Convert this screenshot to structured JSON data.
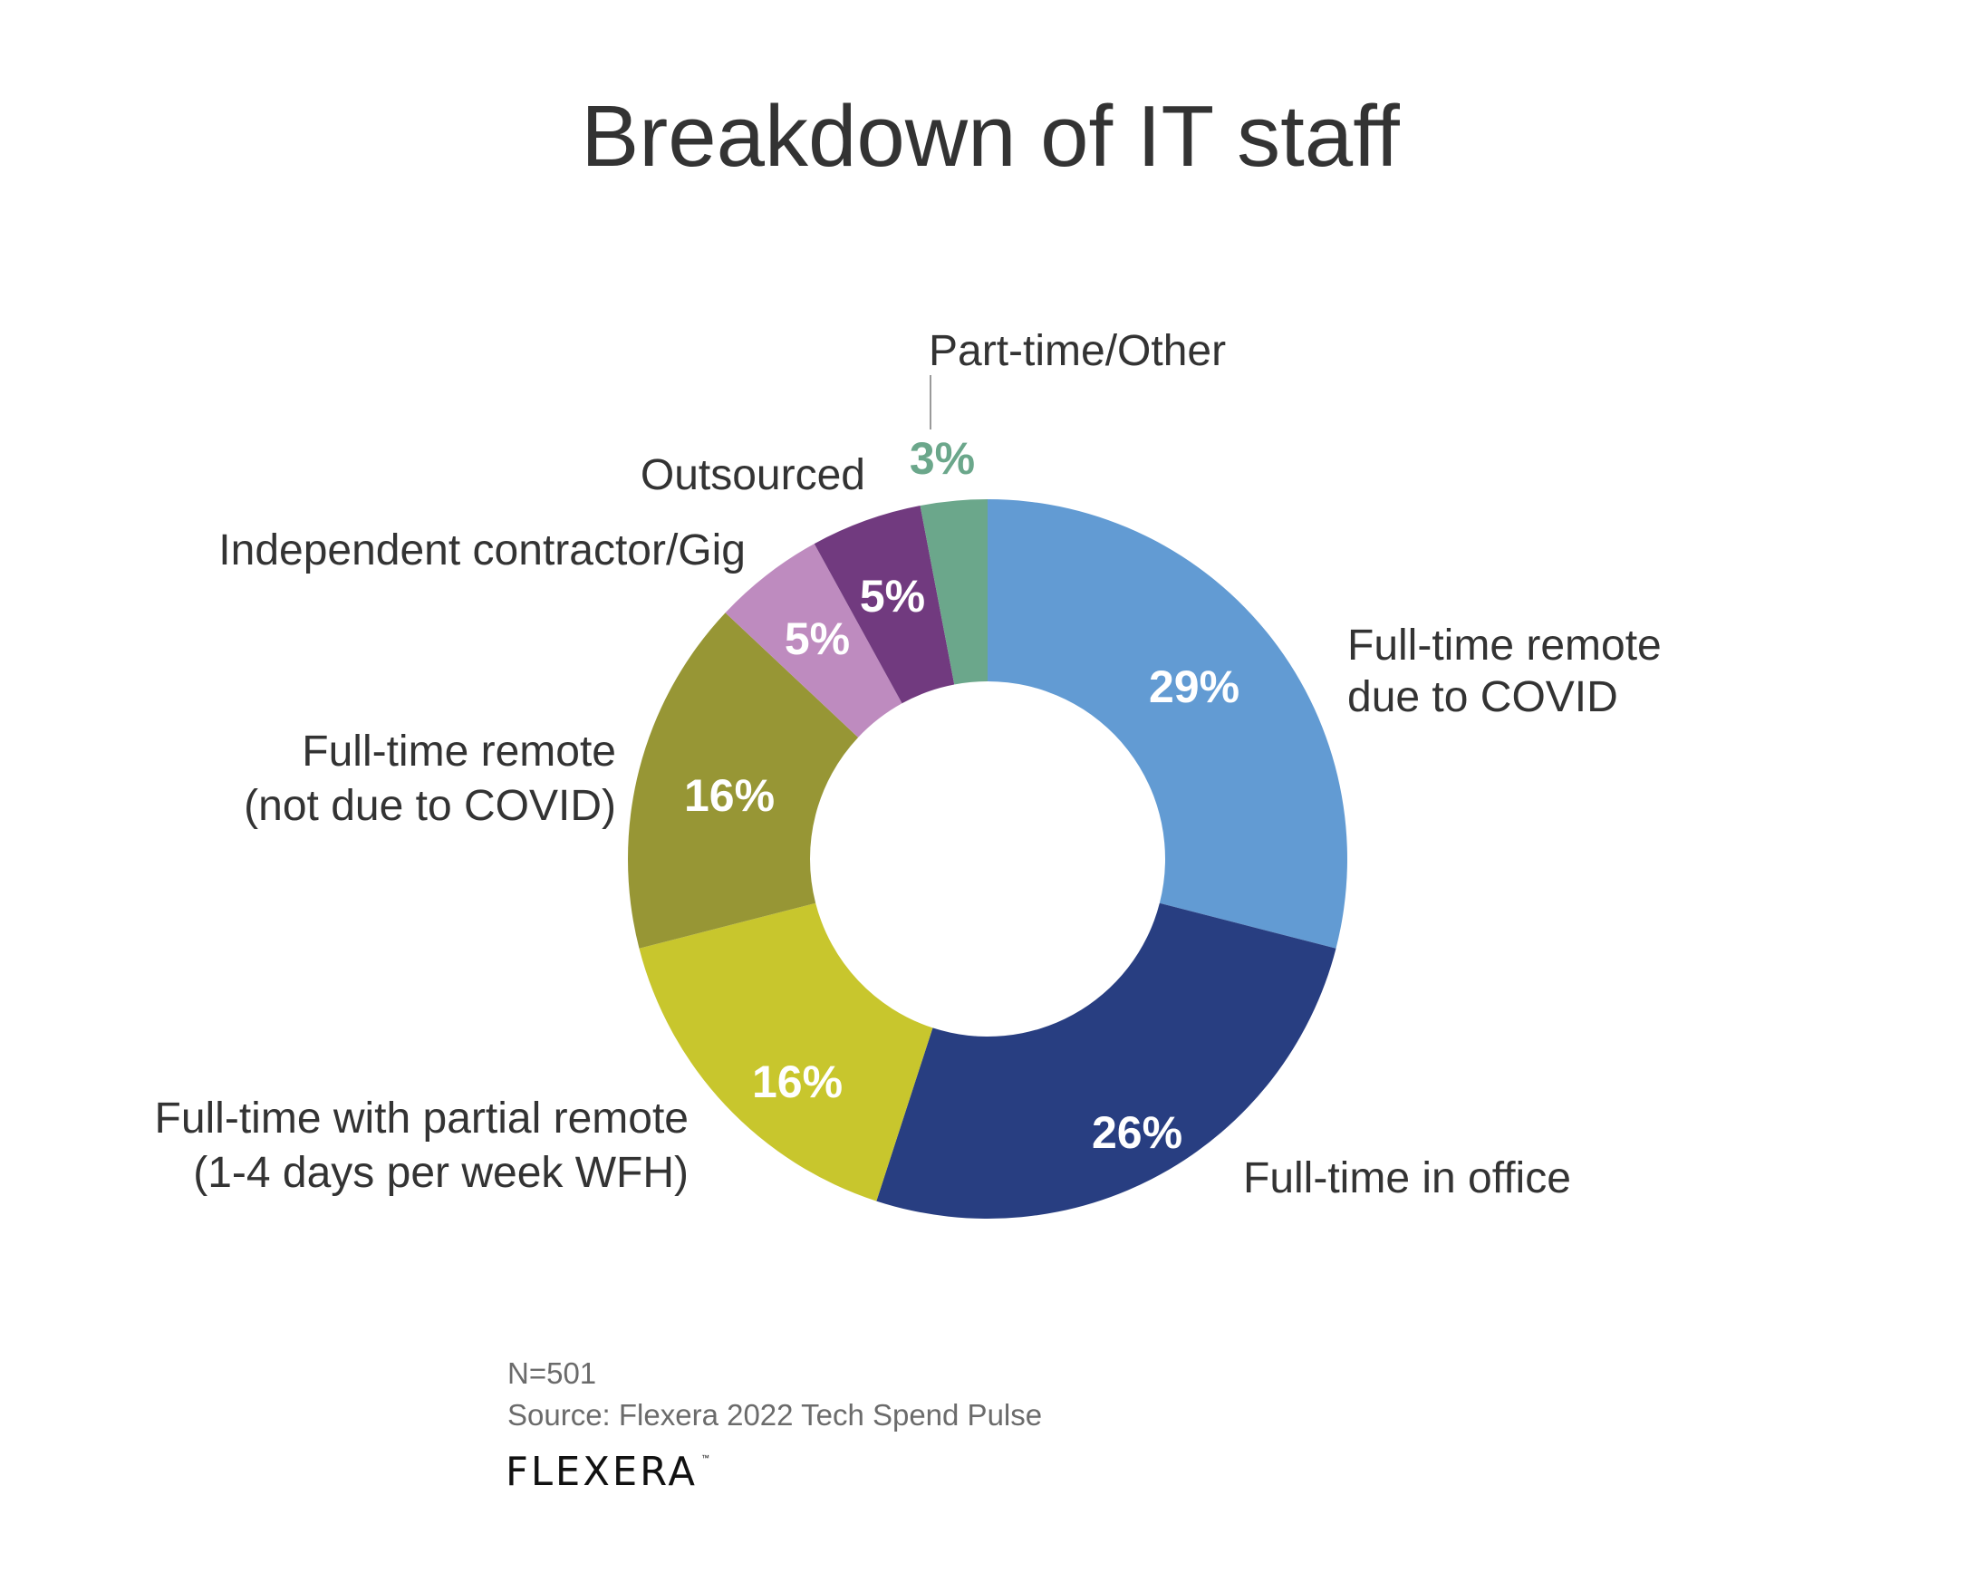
{
  "chart_data": {
    "type": "pie",
    "subtype": "donut",
    "title": "Breakdown of IT staff",
    "start_angle": "12 o'clock",
    "direction": "clockwise",
    "unit": "%",
    "slices": [
      {
        "label": "Full-time remote due to COVID",
        "lines": [
          "Full-time remote",
          "due to COVID"
        ],
        "value": 29,
        "value_label": "29%",
        "color": "#629BD3",
        "value_color": "#FFFFFF"
      },
      {
        "label": "Full-time in office",
        "lines": [
          "Full-time in office"
        ],
        "value": 26,
        "value_label": "26%",
        "color": "#283E81",
        "value_color": "#FFFFFF"
      },
      {
        "label": "Full-time with partial remote (1-4 days per week WFH)",
        "lines": [
          "Full-time with partial remote",
          "(1-4 days per week WFH)"
        ],
        "value": 16,
        "value_label": "16%",
        "color": "#C8C62D",
        "value_color": "#FFFFFF"
      },
      {
        "label": "Full-time remote (not due to COVID)",
        "lines": [
          "Full-time remote",
          "(not due to COVID)"
        ],
        "value": 16,
        "value_label": "16%",
        "color": "#979635",
        "value_color": "#FFFFFF"
      },
      {
        "label": "Independent contractor/Gig",
        "lines": [
          "Independent contractor/Gig"
        ],
        "value": 5,
        "value_label": "5%",
        "color": "#BE8BBF",
        "value_color": "#FFFFFF"
      },
      {
        "label": "Outsourced",
        "lines": [
          "Outsourced"
        ],
        "value": 5,
        "value_label": "5%",
        "color": "#713A7F",
        "value_color": "#FFFFFF"
      },
      {
        "label": "Part-time/Other",
        "lines": [
          "Part-time/Other"
        ],
        "value": 3,
        "value_label": "3%",
        "color": "#6BA78B",
        "value_color": "#6BA78B"
      }
    ]
  },
  "footer": {
    "sample": "N=501",
    "source": "Source: Flexera 2022 Tech Spend Pulse",
    "logo_text": "FLEXERA",
    "logo_mark": "™"
  }
}
